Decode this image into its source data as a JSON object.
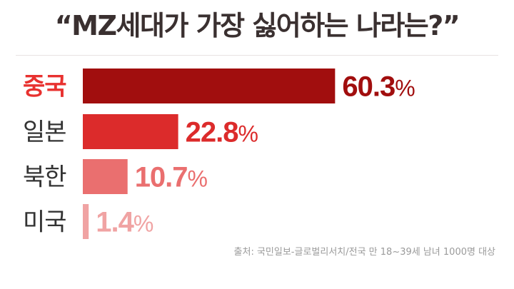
{
  "colors": {
    "highlight_label": "#e8312f",
    "label": "#333333",
    "bars": [
      "#a10e0e",
      "#dc2b2b",
      "#ea6f6f",
      "#f0a3a3"
    ],
    "values": [
      "#a10e0e",
      "#dc2b2b",
      "#ea6f6f",
      "#f0a3a3"
    ]
  },
  "source": "출처: 국민일보-글로벌리서치/전국 만 18~39세 남녀 1000명 대상",
  "chart_data": {
    "type": "bar",
    "orientation": "horizontal",
    "title": "“MZ세대가 가장 싫어하는 나라는?”",
    "categories": [
      "중국",
      "일본",
      "북한",
      "미국"
    ],
    "values": [
      60.3,
      22.8,
      10.7,
      1.4
    ],
    "value_labels": [
      "60.3",
      "22.8",
      "10.7",
      "1.4"
    ],
    "unit": "%",
    "highlight_category": "중국",
    "xlim": [
      0,
      100
    ],
    "grid": false,
    "legend": "none"
  }
}
